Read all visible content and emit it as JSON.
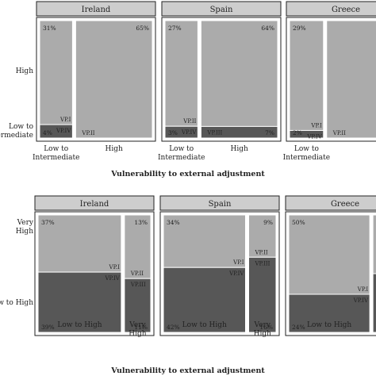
{
  "colors": {
    "light": "#ababab",
    "dark": "#575757",
    "frame": "#222222",
    "header": "#cdcdcd"
  },
  "chart_data": [
    {
      "type": "mosaic",
      "xlabel": "Vulnerability to external adjustment",
      "x_categories": [
        "Low to\nIntermediate",
        "High"
      ],
      "y_categories": [
        "High",
        "Low to\nIntermediate"
      ],
      "panels": [
        {
          "title": "Ireland",
          "columns": [
            {
              "category": "Low to Intermediate",
              "width": 0.3,
              "cells": [
                {
                  "level": "High",
                  "value": 0.31,
                  "pct": "31%",
                  "tag": "VP.I"
                },
                {
                  "level": "Low to Intermediate",
                  "value": 0.04,
                  "pct": "4%",
                  "tag": "VP.IV"
                }
              ]
            },
            {
              "category": "High",
              "width": 0.7,
              "cells": [
                {
                  "level": "High",
                  "value": 0.65,
                  "pct": "65%",
                  "tag": "VP.II"
                },
                {
                  "level": "Low to Intermediate",
                  "value": 0.0,
                  "pct": "",
                  "tag": ""
                }
              ]
            }
          ]
        },
        {
          "title": "Spain",
          "columns": [
            {
              "category": "Low to Intermediate",
              "width": 0.3,
              "cells": [
                {
                  "level": "High",
                  "value": 0.27,
                  "pct": "27%",
                  "tag": "VP.II"
                },
                {
                  "level": "Low to Intermediate",
                  "value": 0.03,
                  "pct": "3%",
                  "tag": "VP.IV"
                }
              ]
            },
            {
              "category": "High",
              "width": 0.7,
              "cells": [
                {
                  "level": "High",
                  "value": 0.64,
                  "pct": "64%",
                  "tag": ""
                },
                {
                  "level": "Low to Intermediate",
                  "value": 0.07,
                  "pct": "7%",
                  "tag": "VP.III"
                }
              ]
            }
          ]
        },
        {
          "title": "Greece",
          "columns": [
            {
              "category": "Low to Intermediate",
              "width": 0.31,
              "cells": [
                {
                  "level": "High",
                  "value": 0.29,
                  "pct": "29%",
                  "tag": "VP.I"
                },
                {
                  "level": "Low to Intermediate",
                  "value": 0.02,
                  "pct": "2%",
                  "tag": "VP.IV"
                }
              ]
            },
            {
              "category": "High",
              "width": 0.69,
              "cells": [
                {
                  "level": "High",
                  "value": 0.69,
                  "pct": "",
                  "tag": "VP.II"
                },
                {
                  "level": "Low to Intermediate",
                  "value": 0.0,
                  "pct": "",
                  "tag": ""
                }
              ]
            }
          ]
        }
      ]
    },
    {
      "type": "mosaic",
      "xlabel": "Vulnerability to external adjustment",
      "x_categories": [
        "Low to High",
        "Very\nHigh"
      ],
      "y_categories": [
        "Very\nHigh",
        "ow to High"
      ],
      "panels": [
        {
          "title": "Ireland",
          "columns": [
            {
              "category": "Low to High",
              "width": 0.76,
              "cells": [
                {
                  "level": "Very High",
                  "value": 0.37,
                  "pct": "37%",
                  "tag": "VP.I"
                },
                {
                  "level": "Low to High",
                  "value": 0.39,
                  "pct": "39%",
                  "tag": "VP.IV"
                }
              ]
            },
            {
              "category": "Very High",
              "width": 0.24,
              "cells": [
                {
                  "level": "Very High",
                  "value": 0.13,
                  "pct": "13%",
                  "tag": "VP.II"
                },
                {
                  "level": "Low to High",
                  "value": 0.11,
                  "pct": "11%",
                  "tag": "VP.III"
                }
              ]
            }
          ]
        },
        {
          "title": "Spain",
          "columns": [
            {
              "category": "Low to High",
              "width": 0.75,
              "cells": [
                {
                  "level": "Very High",
                  "value": 0.34,
                  "pct": "34%",
                  "tag": "VP.I"
                },
                {
                  "level": "Low to High",
                  "value": 0.42,
                  "pct": "42%",
                  "tag": "VP.IV"
                }
              ]
            },
            {
              "category": "Very High",
              "width": 0.25,
              "cells": [
                {
                  "level": "Very High",
                  "value": 0.09,
                  "pct": "9%",
                  "tag": "VP.II"
                },
                {
                  "level": "Low to High",
                  "value": 0.16,
                  "pct": "16%",
                  "tag": "VP.III"
                }
              ]
            }
          ]
        },
        {
          "title": "Greece",
          "columns": [
            {
              "category": "Low to High",
              "width": 0.74,
              "cells": [
                {
                  "level": "Very High",
                  "value": 0.5,
                  "pct": "50%",
                  "tag": "VP.I"
                },
                {
                  "level": "Low to High",
                  "value": 0.24,
                  "pct": "24%",
                  "tag": "VP.IV"
                }
              ]
            },
            {
              "category": "Very High",
              "width": 0.26,
              "cells": [
                {
                  "level": "Very High",
                  "value": 0.13,
                  "pct": "",
                  "tag": ""
                },
                {
                  "level": "Low to High",
                  "value": 0.13,
                  "pct": "",
                  "tag": ""
                }
              ]
            }
          ]
        }
      ]
    }
  ]
}
